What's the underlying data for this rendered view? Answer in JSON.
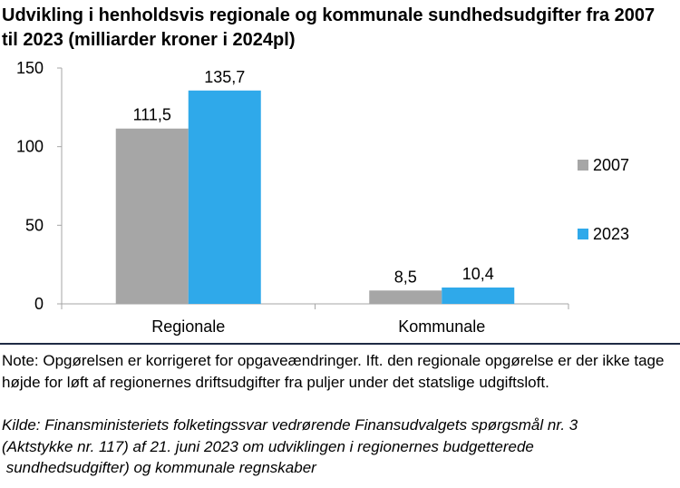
{
  "chart_data": {
    "type": "bar",
    "title": "Udvikling i henholdsvis regionale og kommunale sundhedsudgifter fra 2007 til 2023 (milliarder kroner i 2024pl)",
    "categories": [
      "Regionale",
      "Kommunale"
    ],
    "series": [
      {
        "name": "2007",
        "color": "#a6a6a6",
        "values": [
          111.5,
          8.5
        ],
        "labels": [
          "111,5",
          "8,5"
        ]
      },
      {
        "name": "2023",
        "color": "#2fa9ea",
        "values": [
          135.7,
          10.4
        ],
        "labels": [
          "135,7",
          "10,4"
        ]
      }
    ],
    "ylim": [
      0,
      150
    ],
    "yticks": [
      0,
      50,
      100,
      150
    ],
    "grid": false,
    "legend": "right"
  },
  "note": "Note: Opgørelsen er korrigeret for opgaveændringer. Ift. den regionale opgørelse er der ikke tage højde for løft af regionernes driftsudgifter fra puljer under det statslige udgiftsloft.",
  "source": [
    "Kilde: Finansministeriets folketingssvar vedrørende Finansudvalgets spørgsmål nr. 3",
    "(Aktstykke nr. 117) af 21. juni 2023 om udviklingen i regionernes budgetterede",
    " sundhedsudgifter) og kommunale regnskaber"
  ]
}
